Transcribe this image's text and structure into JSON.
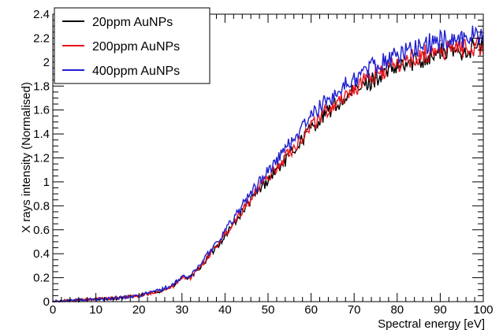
{
  "chart_data": {
    "type": "line",
    "title": "",
    "xlabel": "Spectral energy  [eV]",
    "ylabel": "X rays intensity (Normalised)",
    "xlim": [
      0,
      100
    ],
    "ylim": [
      0,
      2.4
    ],
    "x_ticks": [
      0,
      10,
      20,
      30,
      40,
      50,
      60,
      70,
      80,
      90,
      100
    ],
    "y_ticks": [
      0,
      0.2,
      0.4,
      0.6,
      0.8,
      1,
      1.2,
      1.4,
      1.6,
      1.8,
      2,
      2.2,
      2.4
    ],
    "grid": false,
    "legend_position": "top-left",
    "x": [
      0,
      5,
      10,
      15,
      20,
      25,
      28,
      30,
      32,
      35,
      40,
      45,
      50,
      55,
      60,
      65,
      70,
      75,
      80,
      85,
      90,
      95,
      100
    ],
    "series": [
      {
        "name": "20ppm AuNPs",
        "color": "#000000",
        "values": [
          0.0,
          0.01,
          0.02,
          0.03,
          0.05,
          0.09,
          0.13,
          0.2,
          0.2,
          0.32,
          0.55,
          0.8,
          1.02,
          1.22,
          1.45,
          1.62,
          1.75,
          1.87,
          1.95,
          2.02,
          2.08,
          2.1,
          2.14
        ]
      },
      {
        "name": "200ppm AuNPs",
        "color": "#e8141c",
        "values": [
          0.0,
          0.01,
          0.02,
          0.03,
          0.05,
          0.09,
          0.13,
          0.2,
          0.2,
          0.33,
          0.56,
          0.82,
          1.04,
          1.25,
          1.47,
          1.64,
          1.78,
          1.9,
          1.98,
          2.05,
          2.1,
          2.12,
          2.14
        ]
      },
      {
        "name": "400ppm AuNPs",
        "color": "#1f1fd0",
        "values": [
          0.0,
          0.01,
          0.02,
          0.03,
          0.05,
          0.1,
          0.14,
          0.21,
          0.21,
          0.35,
          0.59,
          0.86,
          1.09,
          1.32,
          1.55,
          1.72,
          1.86,
          1.98,
          2.06,
          2.13,
          2.18,
          2.2,
          2.24
        ]
      }
    ]
  }
}
